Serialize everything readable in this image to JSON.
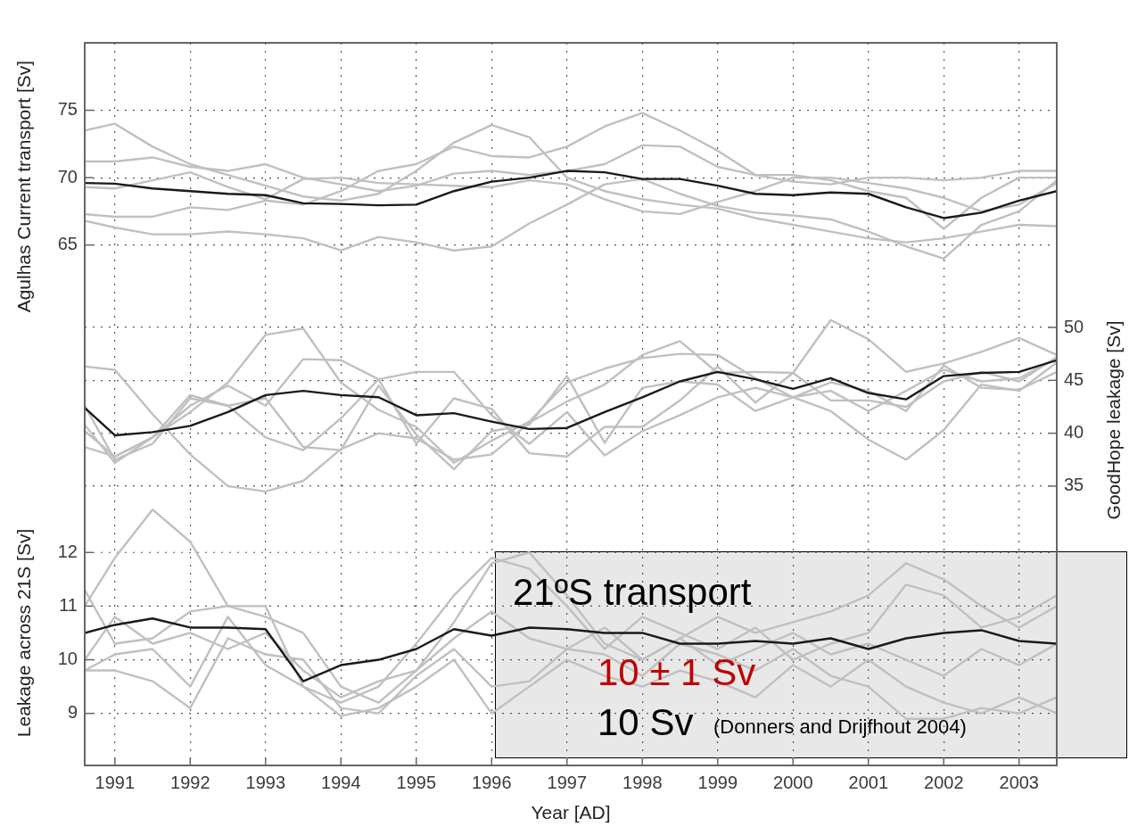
{
  "chart_data": {
    "type": "line",
    "ylabel": "Agulhas Current transport [Sv]",
    "y2label": "GoodHope leakage [Sv]",
    "y3label": "Leakage across 21S [Sv]",
    "xlabel": "Year [AD]",
    "x": [
      1990.6,
      1991,
      1991.5,
      1992,
      1992.5,
      1993,
      1993.5,
      1994,
      1994.5,
      1995,
      1995.5,
      1996,
      1996.5,
      1997,
      1997.5,
      1998,
      1998.5,
      1999,
      1999.5,
      2000,
      2000.5,
      2001,
      2001.5,
      2002,
      2002.5,
      2003,
      2003.5
    ],
    "series": [
      {
        "color": "#c0c0c0",
        "values": [
          73.5,
          74.0,
          72.3,
          71.0,
          70.2,
          69.4,
          68.6,
          68.3,
          68.8,
          70.5,
          72.6,
          73.9,
          73.0,
          70.0,
          69.0,
          68.4,
          68.0,
          67.7,
          67.0,
          66.5,
          66.0,
          65.5,
          65.2,
          65.5,
          66.0,
          66.5,
          66.4
        ]
      },
      {
        "color": "#c0c0c0",
        "values": [
          71.2,
          71.2,
          71.5,
          70.8,
          70.5,
          71.0,
          70.0,
          69.5,
          69.0,
          69.4,
          70.3,
          70.5,
          70.2,
          70.5,
          71.0,
          72.4,
          72.3,
          70.8,
          70.2,
          69.7,
          69.5,
          70.0,
          70.0,
          69.8,
          70.0,
          70.5,
          70.5
        ]
      },
      {
        "color": "#c0c0c0",
        "values": [
          69.3,
          69.2,
          69.8,
          70.4,
          69.3,
          68.4,
          69.9,
          70.0,
          69.6,
          69.5,
          69.4,
          69.3,
          69.8,
          69.5,
          68.4,
          67.5,
          67.3,
          68.2,
          69.0,
          70.0,
          70.0,
          69.6,
          69.2,
          68.5,
          67.5,
          68.0,
          69.6
        ]
      },
      {
        "color": "#c0c0c0",
        "values": [
          67.3,
          67.1,
          67.1,
          67.8,
          67.6,
          68.3,
          68.0,
          69.0,
          70.5,
          71.0,
          72.3,
          71.6,
          71.5,
          72.3,
          73.8,
          74.8,
          73.5,
          72.0,
          70.2,
          70.2,
          69.8,
          69.0,
          68.5,
          66.2,
          68.5,
          70.0,
          70.0
        ]
      },
      {
        "color": "#c0c0c0",
        "values": [
          66.8,
          66.3,
          65.8,
          65.8,
          66.0,
          65.8,
          65.5,
          64.6,
          65.6,
          65.2,
          64.6,
          64.9,
          66.6,
          68.0,
          69.5,
          69.9,
          68.8,
          67.9,
          67.4,
          67.2,
          66.9,
          66.0,
          64.9,
          64.0,
          66.5,
          67.5,
          69.8
        ]
      },
      {
        "color": "#1a1a1a",
        "values": [
          69.6,
          69.55,
          69.2,
          69.0,
          68.8,
          68.7,
          68.1,
          68.05,
          67.95,
          68.0,
          69.0,
          69.7,
          70.0,
          70.5,
          70.4,
          69.9,
          69.9,
          69.4,
          68.8,
          68.7,
          68.9,
          68.8,
          67.8,
          67.0,
          67.4,
          68.3,
          69.0
        ]
      },
      {
        "color": "#c0c0c0",
        "axis": "y2",
        "values": [
          46.3,
          46.0,
          41.8,
          38.0,
          35.0,
          34.5,
          35.5,
          38.5,
          40.0,
          39.5,
          37.5,
          38.0,
          41.0,
          43.0,
          44.6,
          47.4,
          48.7,
          45.7,
          45.8,
          45.7,
          50.7,
          48.9,
          45.8,
          46.6,
          47.7,
          49.0,
          47.4
        ]
      },
      {
        "color": "#c0c0c0",
        "axis": "y2",
        "values": [
          40.8,
          37.2,
          39.6,
          42.0,
          44.8,
          49.3,
          49.9,
          44.8,
          42.2,
          40.6,
          37.2,
          39.3,
          41.1,
          44.8,
          46.1,
          47.1,
          47.5,
          47.4,
          45.2,
          43.4,
          44.0,
          42.1,
          44.0,
          46.0,
          44.9,
          45.2,
          47.1
        ]
      },
      {
        "color": "#c0c0c0",
        "axis": "y2",
        "values": [
          38.7,
          37.8,
          39.6,
          42.6,
          44.5,
          42.6,
          47.0,
          46.9,
          45.1,
          45.8,
          45.8,
          41.7,
          39.0,
          42.0,
          37.9,
          40.2,
          41.7,
          43.4,
          44.3,
          43.4,
          42.1,
          39.4,
          37.5,
          40.3,
          44.6,
          44.0,
          46.7
        ]
      },
      {
        "color": "#c0c0c0",
        "axis": "y2",
        "values": [
          42.6,
          37.5,
          39.0,
          43.3,
          42.6,
          39.6,
          38.4,
          41.4,
          45.1,
          39.0,
          43.3,
          42.3,
          38.1,
          37.8,
          40.6,
          40.6,
          43.1,
          46.3,
          42.9,
          45.7,
          43.1,
          43.1,
          42.5,
          44.9,
          45.8,
          44.9,
          47.2
        ]
      },
      {
        "color": "#c0c0c0",
        "axis": "y2",
        "values": [
          40.2,
          37.8,
          39.6,
          43.6,
          42.6,
          43.3,
          38.7,
          38.4,
          44.5,
          39.9,
          36.6,
          40.2,
          40.8,
          45.4,
          39.1,
          44.3,
          44.9,
          44.6,
          42.1,
          43.4,
          44.8,
          44.0,
          42.1,
          46.4,
          44.3,
          44.1,
          45.8
        ]
      },
      {
        "color": "#1a1a1a",
        "axis": "y2",
        "values": [
          42.4,
          39.8,
          40.1,
          40.7,
          42.0,
          43.6,
          44.0,
          43.6,
          43.4,
          41.7,
          41.9,
          41.1,
          40.4,
          40.5,
          42.0,
          43.4,
          44.9,
          45.8,
          45.1,
          44.2,
          45.2,
          43.8,
          43.2,
          45.4,
          45.7,
          45.8,
          46.9
        ]
      },
      {
        "color": "#c0c0c0",
        "axis": "y3",
        "values": [
          11.0,
          11.9,
          12.8,
          12.2,
          11.0,
          10.8,
          10.5,
          9.5,
          9.2,
          9.8,
          10.7,
          11.8,
          12.0,
          11.2,
          10.3,
          10.0,
          10.4,
          10.8,
          10.5,
          10.7,
          10.9,
          11.2,
          11.8,
          11.5,
          11.0,
          10.6,
          11.0
        ]
      },
      {
        "color": "#c0c0c0",
        "axis": "y3",
        "values": [
          11.3,
          10.3,
          10.4,
          10.9,
          11.0,
          11.0,
          9.5,
          9.2,
          9.5,
          10.3,
          11.2,
          11.9,
          11.7,
          11.0,
          10.2,
          10.8,
          10.5,
          10.2,
          10.6,
          10.0,
          10.3,
          10.5,
          11.4,
          11.2,
          10.6,
          10.8,
          11.2
        ]
      },
      {
        "color": "#c0c0c0",
        "axis": "y3",
        "values": [
          10.0,
          10.8,
          10.3,
          10.5,
          10.2,
          10.5,
          9.8,
          9.3,
          9.6,
          9.8,
          10.4,
          10.9,
          10.4,
          10.2,
          10.6,
          10.0,
          10.4,
          9.9,
          10.2,
          10.5,
          10.1,
          10.3,
          10.0,
          9.7,
          10.2,
          9.9,
          10.3
        ]
      },
      {
        "color": "#c0c0c0",
        "axis": "y3",
        "values": [
          9.8,
          10.1,
          10.2,
          9.5,
          10.8,
          9.9,
          9.5,
          8.95,
          9.1,
          9.5,
          10.0,
          9.0,
          9.5,
          10.0,
          9.7,
          9.5,
          9.8,
          9.6,
          9.3,
          9.9,
          9.5,
          10.0,
          9.5,
          9.2,
          9.0,
          9.3,
          9.0
        ]
      },
      {
        "color": "#c0c0c0",
        "axis": "y3",
        "values": [
          9.8,
          9.8,
          9.6,
          9.1,
          10.4,
          10.1,
          10.0,
          9.1,
          9.0,
          9.7,
          10.2,
          9.5,
          9.6,
          10.2,
          10.1,
          9.7,
          10.3,
          10.1,
          9.8,
          10.2,
          9.7,
          9.5,
          8.9,
          8.9,
          9.1,
          9.0,
          9.3
        ]
      },
      {
        "color": "#1a1a1a",
        "axis": "y3",
        "values": [
          10.5,
          10.65,
          10.77,
          10.6,
          10.6,
          10.57,
          9.6,
          9.9,
          10.0,
          10.2,
          10.57,
          10.45,
          10.6,
          10.57,
          10.5,
          10.5,
          10.3,
          10.3,
          10.35,
          10.3,
          10.4,
          10.2,
          10.4,
          10.5,
          10.55,
          10.35,
          10.3
        ]
      }
    ],
    "xlim": [
      1990.6,
      2003.5
    ],
    "xticks": [
      1991,
      1992,
      1993,
      1994,
      1995,
      1996,
      1997,
      1998,
      1999,
      2000,
      2001,
      2002,
      2003
    ],
    "ylim": [
      26.4,
      80
    ],
    "yticks": [
      65,
      70,
      75
    ],
    "y2lim": [
      8.6,
      76.9
    ],
    "y2ticks": [
      35,
      40,
      45,
      50
    ],
    "y3lim": [
      8.03,
      21.5
    ],
    "y3ticks": [
      9,
      10,
      11,
      12
    ],
    "grid": true,
    "legend": false,
    "marker": "none",
    "annotations": [
      "21ºS transport",
      "10 ± 1 Sv",
      "10 Sv",
      "(Donners and Drijfhout 2004)"
    ]
  }
}
